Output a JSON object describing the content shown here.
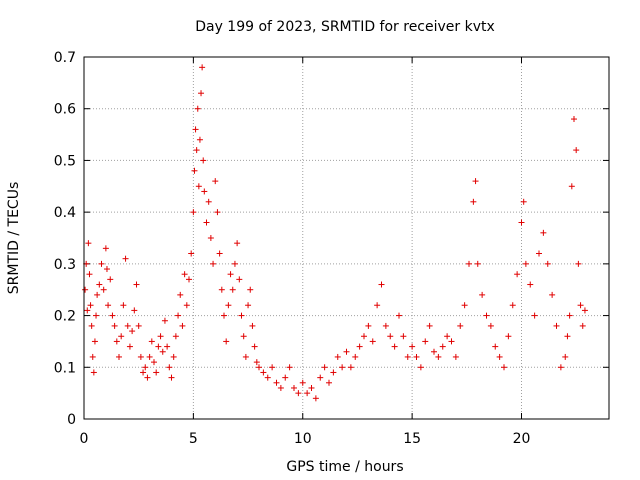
{
  "chart_data": {
    "type": "scatter",
    "title": "Day 199 of 2023, SRMTID for receiver kvtx",
    "xlabel": "GPS time / hours",
    "ylabel": "SRMTID / TECUs",
    "xlim": [
      0,
      24
    ],
    "ylim": [
      0,
      0.7
    ],
    "xticks": [
      0,
      5,
      10,
      15,
      20
    ],
    "xtick_labels": [
      "0",
      "5",
      "10",
      "15",
      "20"
    ],
    "yticks": [
      0,
      0.1,
      0.2,
      0.3,
      0.4,
      0.5,
      0.6,
      0.7
    ],
    "ytick_labels": [
      "0",
      "0.1",
      "0.2",
      "0.3",
      "0.4",
      "0.5",
      "0.6",
      "0.7"
    ],
    "grid": true,
    "marker": "+",
    "color": "#e00000",
    "series": [
      {
        "name": "SRMTID",
        "points": [
          [
            0.05,
            0.25
          ],
          [
            0.1,
            0.3
          ],
          [
            0.15,
            0.21
          ],
          [
            0.2,
            0.34
          ],
          [
            0.25,
            0.28
          ],
          [
            0.3,
            0.22
          ],
          [
            0.35,
            0.18
          ],
          [
            0.4,
            0.12
          ],
          [
            0.45,
            0.09
          ],
          [
            0.5,
            0.15
          ],
          [
            0.55,
            0.2
          ],
          [
            0.6,
            0.24
          ],
          [
            0.7,
            0.26
          ],
          [
            0.8,
            0.3
          ],
          [
            0.9,
            0.25
          ],
          [
            1.0,
            0.33
          ],
          [
            1.05,
            0.29
          ],
          [
            1.1,
            0.22
          ],
          [
            1.2,
            0.27
          ],
          [
            1.3,
            0.2
          ],
          [
            1.4,
            0.18
          ],
          [
            1.5,
            0.15
          ],
          [
            1.6,
            0.12
          ],
          [
            1.7,
            0.16
          ],
          [
            1.8,
            0.22
          ],
          [
            1.9,
            0.31
          ],
          [
            2.0,
            0.18
          ],
          [
            2.1,
            0.14
          ],
          [
            2.2,
            0.17
          ],
          [
            2.3,
            0.21
          ],
          [
            2.4,
            0.26
          ],
          [
            2.5,
            0.18
          ],
          [
            2.6,
            0.12
          ],
          [
            2.7,
            0.09
          ],
          [
            2.8,
            0.1
          ],
          [
            2.9,
            0.08
          ],
          [
            3.0,
            0.12
          ],
          [
            3.1,
            0.15
          ],
          [
            3.2,
            0.11
          ],
          [
            3.3,
            0.09
          ],
          [
            3.4,
            0.14
          ],
          [
            3.5,
            0.16
          ],
          [
            3.6,
            0.13
          ],
          [
            3.7,
            0.19
          ],
          [
            3.8,
            0.14
          ],
          [
            3.9,
            0.1
          ],
          [
            4.0,
            0.08
          ],
          [
            4.1,
            0.12
          ],
          [
            4.2,
            0.16
          ],
          [
            4.3,
            0.2
          ],
          [
            4.4,
            0.24
          ],
          [
            4.5,
            0.18
          ],
          [
            4.6,
            0.28
          ],
          [
            4.7,
            0.22
          ],
          [
            4.8,
            0.27
          ],
          [
            4.9,
            0.32
          ],
          [
            5.0,
            0.4
          ],
          [
            5.05,
            0.48
          ],
          [
            5.1,
            0.56
          ],
          [
            5.15,
            0.52
          ],
          [
            5.2,
            0.6
          ],
          [
            5.25,
            0.45
          ],
          [
            5.3,
            0.54
          ],
          [
            5.35,
            0.63
          ],
          [
            5.4,
            0.68
          ],
          [
            5.45,
            0.5
          ],
          [
            5.5,
            0.44
          ],
          [
            5.6,
            0.38
          ],
          [
            5.7,
            0.42
          ],
          [
            5.8,
            0.35
          ],
          [
            5.9,
            0.3
          ],
          [
            6.0,
            0.46
          ],
          [
            6.1,
            0.4
          ],
          [
            6.2,
            0.32
          ],
          [
            6.3,
            0.25
          ],
          [
            6.4,
            0.2
          ],
          [
            6.5,
            0.15
          ],
          [
            6.6,
            0.22
          ],
          [
            6.7,
            0.28
          ],
          [
            6.8,
            0.25
          ],
          [
            6.9,
            0.3
          ],
          [
            7.0,
            0.34
          ],
          [
            7.1,
            0.27
          ],
          [
            7.2,
            0.2
          ],
          [
            7.3,
            0.16
          ],
          [
            7.4,
            0.12
          ],
          [
            7.5,
            0.22
          ],
          [
            7.6,
            0.25
          ],
          [
            7.7,
            0.18
          ],
          [
            7.8,
            0.14
          ],
          [
            7.9,
            0.11
          ],
          [
            8.0,
            0.1
          ],
          [
            8.2,
            0.09
          ],
          [
            8.4,
            0.08
          ],
          [
            8.6,
            0.1
          ],
          [
            8.8,
            0.07
          ],
          [
            9.0,
            0.06
          ],
          [
            9.2,
            0.08
          ],
          [
            9.4,
            0.1
          ],
          [
            9.6,
            0.06
          ],
          [
            9.8,
            0.05
          ],
          [
            10.0,
            0.07
          ],
          [
            10.2,
            0.05
          ],
          [
            10.4,
            0.06
          ],
          [
            10.6,
            0.04
          ],
          [
            10.8,
            0.08
          ],
          [
            11.0,
            0.1
          ],
          [
            11.2,
            0.07
          ],
          [
            11.4,
            0.09
          ],
          [
            11.6,
            0.12
          ],
          [
            11.8,
            0.1
          ],
          [
            12.0,
            0.13
          ],
          [
            12.2,
            0.1
          ],
          [
            12.4,
            0.12
          ],
          [
            12.6,
            0.14
          ],
          [
            12.8,
            0.16
          ],
          [
            13.0,
            0.18
          ],
          [
            13.2,
            0.15
          ],
          [
            13.4,
            0.22
          ],
          [
            13.6,
            0.26
          ],
          [
            13.8,
            0.18
          ],
          [
            14.0,
            0.16
          ],
          [
            14.2,
            0.14
          ],
          [
            14.4,
            0.2
          ],
          [
            14.6,
            0.16
          ],
          [
            14.8,
            0.12
          ],
          [
            15.0,
            0.14
          ],
          [
            15.2,
            0.12
          ],
          [
            15.4,
            0.1
          ],
          [
            15.6,
            0.15
          ],
          [
            15.8,
            0.18
          ],
          [
            16.0,
            0.13
          ],
          [
            16.2,
            0.12
          ],
          [
            16.4,
            0.14
          ],
          [
            16.6,
            0.16
          ],
          [
            16.8,
            0.15
          ],
          [
            17.0,
            0.12
          ],
          [
            17.2,
            0.18
          ],
          [
            17.4,
            0.22
          ],
          [
            17.6,
            0.3
          ],
          [
            17.8,
            0.42
          ],
          [
            17.9,
            0.46
          ],
          [
            18.0,
            0.3
          ],
          [
            18.2,
            0.24
          ],
          [
            18.4,
            0.2
          ],
          [
            18.6,
            0.18
          ],
          [
            18.8,
            0.14
          ],
          [
            19.0,
            0.12
          ],
          [
            19.2,
            0.1
          ],
          [
            19.4,
            0.16
          ],
          [
            19.6,
            0.22
          ],
          [
            19.8,
            0.28
          ],
          [
            20.0,
            0.38
          ],
          [
            20.1,
            0.42
          ],
          [
            20.2,
            0.3
          ],
          [
            20.4,
            0.26
          ],
          [
            20.6,
            0.2
          ],
          [
            20.8,
            0.32
          ],
          [
            21.0,
            0.36
          ],
          [
            21.2,
            0.3
          ],
          [
            21.4,
            0.24
          ],
          [
            21.6,
            0.18
          ],
          [
            21.8,
            0.1
          ],
          [
            22.0,
            0.12
          ],
          [
            22.1,
            0.16
          ],
          [
            22.2,
            0.2
          ],
          [
            22.3,
            0.45
          ],
          [
            22.4,
            0.58
          ],
          [
            22.5,
            0.52
          ],
          [
            22.6,
            0.3
          ],
          [
            22.7,
            0.22
          ],
          [
            22.8,
            0.18
          ],
          [
            22.9,
            0.21
          ]
        ]
      }
    ]
  }
}
